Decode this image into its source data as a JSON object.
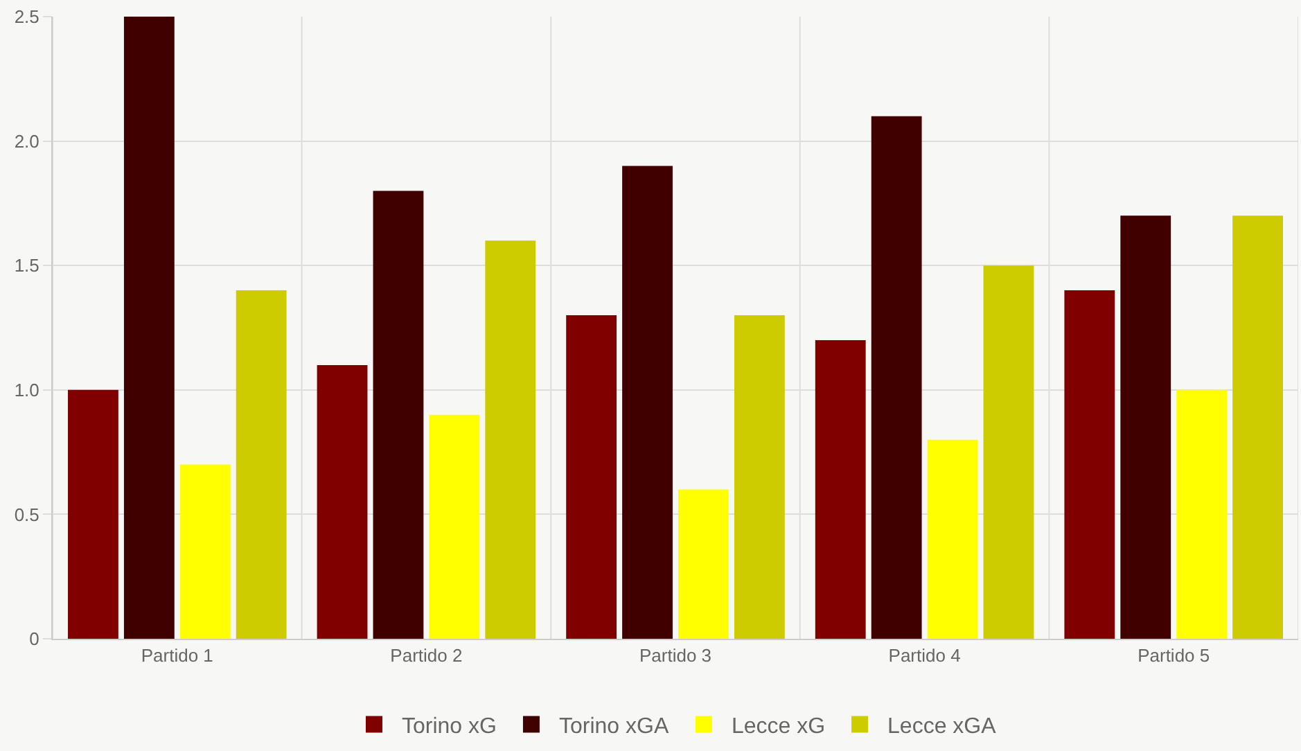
{
  "chart_data": {
    "type": "bar",
    "categories": [
      "Partido 1",
      "Partido 2",
      "Partido 3",
      "Partido 4",
      "Partido 5"
    ],
    "series": [
      {
        "name": "Torino xG",
        "color": "#800000",
        "values": [
          1.0,
          1.1,
          1.3,
          1.2,
          1.4
        ]
      },
      {
        "name": "Torino xGA",
        "color": "#400000",
        "values": [
          2.5,
          1.8,
          1.9,
          2.1,
          1.7
        ]
      },
      {
        "name": "Lecce xG",
        "color": "#ffff00",
        "values": [
          0.7,
          0.9,
          0.6,
          0.8,
          1.0
        ]
      },
      {
        "name": "Lecce xGA",
        "color": "#cccc00",
        "values": [
          1.4,
          1.6,
          1.3,
          1.5,
          1.7
        ]
      }
    ],
    "ylim": [
      0,
      2.5
    ],
    "yticks": [
      0,
      0.5,
      {
        "value": 1,
        "label": "1.0"
      },
      1.5,
      {
        "value": 2,
        "label": "2.0"
      },
      2.5
    ],
    "grid": true,
    "legend": "bottom"
  }
}
